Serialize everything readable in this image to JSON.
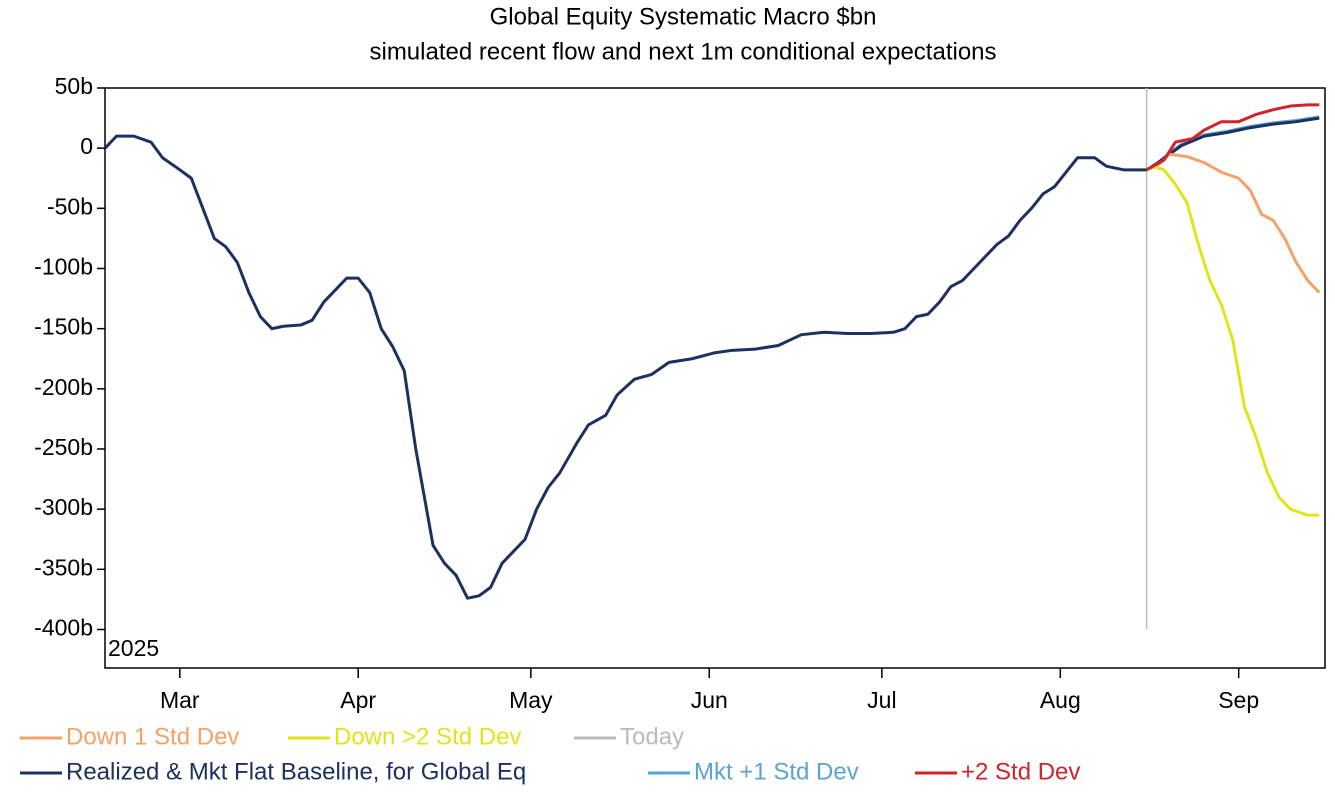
{
  "chart_data": {
    "type": "line",
    "title": "Global Equity Systematic Macro $bn",
    "subtitle": "simulated recent flow and next 1m conditional expectations",
    "annotation": "2025",
    "xlim": [
      47,
      259
    ],
    "xticks": [
      {
        "value": 60,
        "label": "Mar"
      },
      {
        "value": 91,
        "label": "Apr"
      },
      {
        "value": 121,
        "label": "May"
      },
      {
        "value": 152,
        "label": "Jun"
      },
      {
        "value": 182,
        "label": "Jul"
      },
      {
        "value": 213,
        "label": "Aug"
      },
      {
        "value": 244,
        "label": "Sep"
      }
    ],
    "ylim": [
      -432,
      50
    ],
    "yticks": [
      {
        "value": 50,
        "label": "50b"
      },
      0,
      {
        "value": -50,
        "label": "-50b"
      },
      {
        "value": -100,
        "label": "-100b"
      },
      {
        "value": -150,
        "label": "-150b"
      },
      {
        "value": -200,
        "label": "-200b"
      },
      {
        "value": -250,
        "label": "-250b"
      },
      {
        "value": -300,
        "label": "-300b"
      },
      {
        "value": -350,
        "label": "-350b"
      },
      {
        "value": -400,
        "label": "-400b"
      }
    ],
    "grid": false,
    "series": [
      {
        "name": "Down 1 Std Dev",
        "color": "#f4a268",
        "x": [
          228,
          230,
          232,
          235,
          238,
          241,
          244,
          246,
          248,
          250,
          252,
          254,
          256,
          258
        ],
        "values": [
          -18,
          -14,
          -5,
          -7,
          -12,
          -20,
          -25,
          -35,
          -55,
          -60,
          -75,
          -95,
          -110,
          -120
        ]
      },
      {
        "name": "Down >2 Std Dev",
        "color": "#e3e31a",
        "x": [
          228,
          229,
          231,
          233,
          235,
          237,
          239,
          241,
          243,
          245,
          247,
          249,
          251,
          253,
          256,
          258
        ],
        "values": [
          -18,
          -15,
          -18,
          -30,
          -45,
          -80,
          -110,
          -130,
          -160,
          -215,
          -240,
          -270,
          -290,
          -300,
          -305,
          -305
        ]
      },
      {
        "name": "Today",
        "color": "#bbbbbb",
        "x": [
          228,
          228
        ],
        "values": [
          50,
          -400
        ]
      },
      {
        "name": "Realized & Mkt Flat Baseline, for Global Eq",
        "color": "#1c3160",
        "x": [
          47,
          49,
          52,
          55,
          57,
          60,
          62,
          64,
          66,
          68,
          70,
          72,
          74,
          76,
          78,
          81,
          83,
          85,
          87,
          89,
          91,
          93,
          95,
          97,
          99,
          101,
          104,
          106,
          108,
          110,
          112,
          114,
          116,
          118,
          120,
          122,
          124,
          126,
          129,
          131,
          134,
          136,
          139,
          142,
          145,
          149,
          153,
          156,
          160,
          164,
          168,
          172,
          176,
          180,
          184,
          186,
          188,
          190,
          192,
          194,
          196,
          198,
          200,
          202,
          204,
          206,
          208,
          210,
          212,
          214,
          216,
          219,
          221,
          224,
          226,
          228,
          230,
          232,
          234,
          238,
          242,
          246,
          250,
          254,
          258
        ],
        "values": [
          0,
          10,
          10,
          5,
          -8,
          -18,
          -25,
          -50,
          -75,
          -82,
          -95,
          -120,
          -140,
          -150,
          -148,
          -147,
          -143,
          -128,
          -118,
          -108,
          -108,
          -120,
          -150,
          -165,
          -185,
          -250,
          -330,
          -345,
          -355,
          -374,
          -372,
          -365,
          -345,
          -335,
          -325,
          -300,
          -282,
          -270,
          -245,
          -230,
          -222,
          -205,
          -192,
          -188,
          -178,
          -175,
          -170,
          -168,
          -167,
          -164,
          -155,
          -153,
          -154,
          -154,
          -153,
          -150,
          -140,
          -138,
          -128,
          -115,
          -110,
          -100,
          -90,
          -80,
          -73,
          -60,
          -50,
          -38,
          -32,
          -20,
          -8,
          -8,
          -15,
          -18,
          -18,
          -18,
          -12,
          -5,
          2,
          10,
          13,
          17,
          20,
          22,
          25
        ]
      },
      {
        "name": "Mkt +1 Std Dev",
        "color": "#5ba3d0",
        "x": [
          228,
          230,
          232,
          234,
          238,
          242,
          246,
          250,
          254,
          258
        ],
        "values": [
          -18,
          -12,
          -4,
          3,
          11,
          14,
          18,
          21,
          23,
          26
        ]
      },
      {
        "name": "+2 Std Dev",
        "color": "#d3232a",
        "x": [
          228,
          231,
          233,
          236,
          238,
          241,
          244,
          247,
          250,
          253,
          256,
          258
        ],
        "values": [
          -18,
          -10,
          5,
          8,
          15,
          22,
          22,
          28,
          32,
          35,
          36,
          36
        ]
      }
    ]
  }
}
